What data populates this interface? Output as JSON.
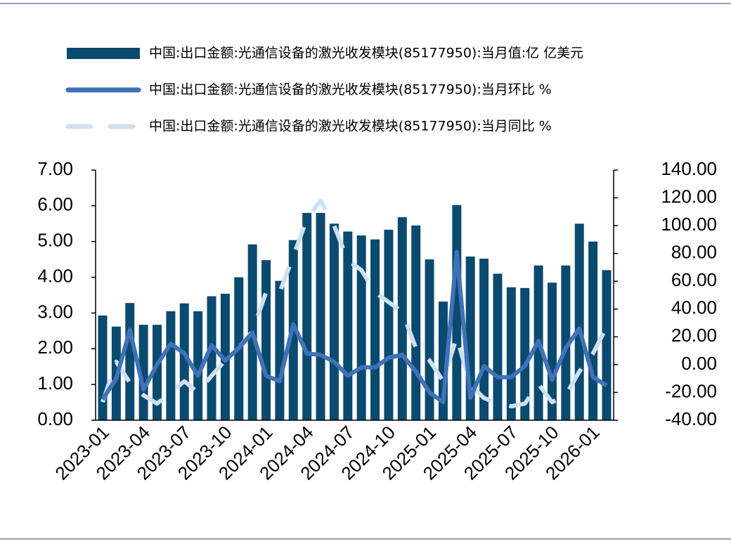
{
  "chart_data": {
    "type": "bar-line",
    "categories": [
      "2023-01",
      null,
      null,
      "2023-04",
      null,
      null,
      "2023-07",
      null,
      null,
      "2023-10",
      null,
      null,
      "2024-01",
      null,
      null,
      "2024-04",
      null,
      null,
      "2024-07",
      null,
      null,
      "2024-10",
      null,
      null,
      "2025-01",
      null,
      null,
      "2025-04",
      null,
      null,
      "2025-07",
      null,
      null,
      "2025-10",
      null,
      null,
      "2026-01",
      null
    ],
    "series": [
      {
        "name": "中国:出口金额:光通信设备的激光收发模块(85177950):当月值:亿 亿美元",
        "type": "bar",
        "color": "#0b4a6f",
        "values": [
          2.93,
          2.62,
          3.28,
          2.67,
          2.67,
          3.05,
          3.27,
          3.05,
          3.47,
          3.54,
          4.0,
          4.92,
          4.48,
          3.9,
          5.04,
          5.8,
          5.8,
          5.5,
          5.28,
          5.17,
          5.06,
          5.33,
          5.68,
          5.45,
          4.5,
          3.32,
          6.02,
          4.58,
          4.52,
          4.1,
          3.72,
          3.7,
          4.33,
          3.85,
          4.33,
          5.5,
          5.0,
          4.2
        ]
      },
      {
        "name": "中国:出口金额:光通信设备的激光收发模块(85177950):当月环比 %",
        "type": "line",
        "axis": "y2",
        "color": "#3f72b8",
        "values": [
          -25,
          -10,
          25,
          -18,
          0,
          15,
          8,
          -8,
          14,
          3,
          12,
          23,
          -8,
          -12,
          29,
          8,
          7,
          2,
          -8,
          -2,
          -2,
          5,
          7,
          -5,
          -20,
          -27,
          81,
          -24,
          -1,
          -9,
          -9,
          -1,
          17,
          -11,
          12,
          26,
          -9,
          -15
        ]
      },
      {
        "name": "中国:出口金额:光通信设备的激光收发模块(85177950):当月同比 %",
        "type": "line",
        "dashed": true,
        "axis": "y2",
        "color": "#cfe0ef",
        "values": [
          -27,
          2,
          -13,
          -22,
          -28,
          -20,
          -12,
          -20,
          -8,
          3,
          12,
          24,
          52,
          52,
          78,
          105,
          118,
          100,
          75,
          68,
          52,
          45,
          38,
          12,
          3,
          -12,
          20,
          -15,
          -24,
          -28,
          -30,
          -28,
          -14,
          -27,
          -22,
          -5,
          8,
          27
        ]
      }
    ],
    "ylim": [
      0,
      7
    ],
    "yticks": [
      {
        "value": 0,
        "label": "0.00"
      },
      {
        "value": 1,
        "label": "1.00"
      },
      {
        "value": 2,
        "label": "2.00"
      },
      {
        "value": 3,
        "label": "3.00"
      },
      {
        "value": 4,
        "label": "4.00"
      },
      {
        "value": 5,
        "label": "5.00"
      },
      {
        "value": 6,
        "label": "6.00"
      },
      {
        "value": 7,
        "label": "7.00"
      }
    ],
    "y2lim": [
      -40,
      140
    ],
    "y2ticks": [
      {
        "value": -40,
        "label": "-40.00"
      },
      {
        "value": -20,
        "label": "-20.00"
      },
      {
        "value": 0,
        "label": "0.00"
      },
      {
        "value": 20,
        "label": "20.00"
      },
      {
        "value": 40,
        "label": "40.00"
      },
      {
        "value": 60,
        "label": "60.00"
      },
      {
        "value": 80,
        "label": "80.00"
      },
      {
        "value": 100,
        "label": "100.00"
      },
      {
        "value": 120,
        "label": "120.00"
      },
      {
        "value": 140,
        "label": "140.00"
      }
    ],
    "grid": false,
    "legend": "top"
  }
}
